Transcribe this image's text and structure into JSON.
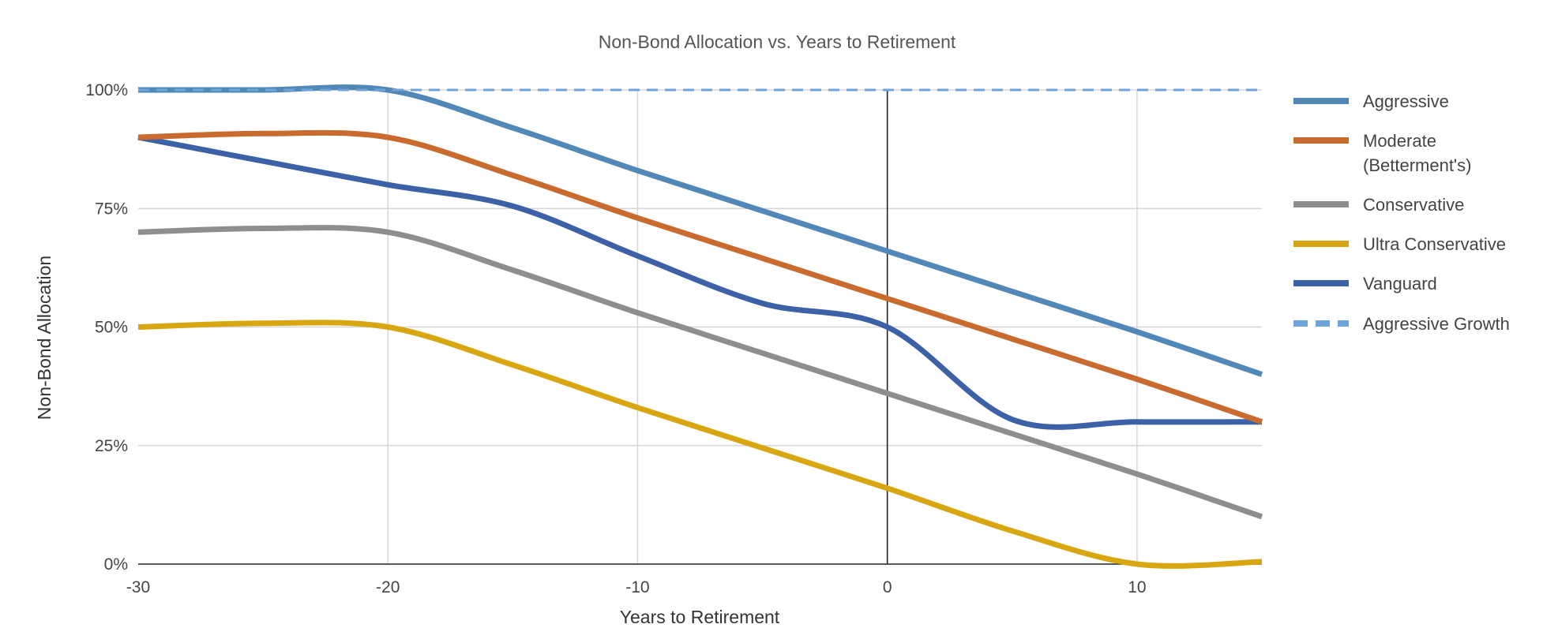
{
  "chart_data": {
    "type": "line",
    "title": "Non-Bond Allocation vs. Years to Retirement",
    "xlabel": "Years to Retirement",
    "ylabel": "Non-Bond Allocation",
    "xlim": [
      -30,
      15
    ],
    "ylim": [
      0,
      100
    ],
    "x_ticks": [
      -30,
      -20,
      -10,
      0,
      10
    ],
    "x_tick_labels": [
      "-30",
      "-20",
      "-10",
      "0",
      "10"
    ],
    "y_ticks": [
      0,
      25,
      50,
      75,
      100
    ],
    "y_tick_labels": [
      "0%",
      "25%",
      "50%",
      "75%",
      "100%"
    ],
    "grid": true,
    "reference_line_x": 0,
    "legend_position": "right",
    "series": [
      {
        "name": "Aggressive",
        "color": "#5288B8",
        "dashed": false,
        "points": [
          [
            -30,
            100
          ],
          [
            -25,
            100
          ],
          [
            -20,
            100
          ],
          [
            -15,
            92
          ],
          [
            -10,
            83
          ],
          [
            -5,
            74.5
          ],
          [
            0,
            66
          ],
          [
            5,
            57.5
          ],
          [
            10,
            49
          ],
          [
            15,
            40
          ]
        ]
      },
      {
        "name": "Moderate",
        "name_line2": "(Betterment's)",
        "color": "#C96A2E",
        "dashed": false,
        "points": [
          [
            -30,
            90
          ],
          [
            -25,
            90.8
          ],
          [
            -20,
            90
          ],
          [
            -15,
            82
          ],
          [
            -10,
            73
          ],
          [
            -5,
            64.5
          ],
          [
            0,
            56
          ],
          [
            5,
            47.5
          ],
          [
            10,
            39
          ],
          [
            15,
            30
          ]
        ]
      },
      {
        "name": "Conservative",
        "color": "#8E8E8E",
        "dashed": false,
        "points": [
          [
            -30,
            70
          ],
          [
            -25,
            70.8
          ],
          [
            -20,
            70
          ],
          [
            -15,
            62
          ],
          [
            -10,
            53
          ],
          [
            -5,
            44.5
          ],
          [
            0,
            36
          ],
          [
            5,
            27.5
          ],
          [
            10,
            19
          ],
          [
            15,
            10
          ]
        ]
      },
      {
        "name": "Ultra Conservative",
        "color": "#D8A611",
        "dashed": false,
        "points": [
          [
            -30,
            50
          ],
          [
            -25,
            50.8
          ],
          [
            -20,
            50
          ],
          [
            -15,
            42
          ],
          [
            -10,
            33
          ],
          [
            -5,
            24.5
          ],
          [
            0,
            16
          ],
          [
            5,
            7
          ],
          [
            10,
            0
          ],
          [
            15,
            0.5
          ]
        ]
      },
      {
        "name": "Vanguard",
        "color": "#3D61A6",
        "dashed": false,
        "points": [
          [
            -30,
            90
          ],
          [
            -25,
            85
          ],
          [
            -20,
            80
          ],
          [
            -15,
            75.5
          ],
          [
            -10,
            65
          ],
          [
            -5,
            55
          ],
          [
            0,
            50
          ],
          [
            5,
            30.5
          ],
          [
            10,
            30
          ],
          [
            15,
            30
          ]
        ]
      },
      {
        "name": "Aggressive Growth",
        "color": "#6FA3DB",
        "dashed": true,
        "points": [
          [
            -30,
            100
          ],
          [
            15,
            100
          ]
        ]
      }
    ]
  }
}
